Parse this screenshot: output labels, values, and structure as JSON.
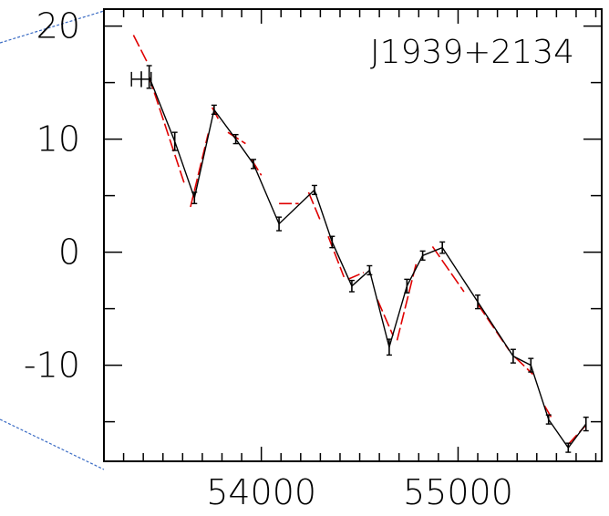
{
  "chart_data": {
    "type": "line",
    "title": "J1939+2134",
    "xlabel": "",
    "ylabel": "",
    "xlim": [
      53200,
      55730
    ],
    "ylim": [
      -18.5,
      21.5
    ],
    "x_ticks": [
      54000,
      55000
    ],
    "y_ticks": [
      20,
      10,
      0,
      -10
    ],
    "y_tick_labels": [
      "20",
      "10",
      "0",
      "-10"
    ],
    "x_tick_labels": [
      "54000",
      "55000"
    ],
    "grid": false,
    "series": [
      {
        "style": "black-line-with-errorbars",
        "color": "#000000",
        "points": [
          {
            "x": 53390,
            "y": 15.3,
            "xerr": 50,
            "yerr": 0.7
          },
          {
            "x": 53430,
            "y": 15.5,
            "xerr": 0,
            "yerr": 1.0
          },
          {
            "x": 53560,
            "y": 9.8,
            "xerr": 0,
            "yerr": 0.8
          },
          {
            "x": 53660,
            "y": 4.8,
            "xerr": 0,
            "yerr": 0.5
          },
          {
            "x": 53760,
            "y": 12.6,
            "xerr": 0,
            "yerr": 0.4
          },
          {
            "x": 53870,
            "y": 10.0,
            "xerr": 0,
            "yerr": 0.4
          },
          {
            "x": 53960,
            "y": 7.8,
            "xerr": 0,
            "yerr": 0.4
          },
          {
            "x": 54090,
            "y": 2.5,
            "xerr": 0,
            "yerr": 0.6
          },
          {
            "x": 54270,
            "y": 5.5,
            "xerr": 0,
            "yerr": 0.4
          },
          {
            "x": 54360,
            "y": 0.9,
            "xerr": 0,
            "yerr": 0.5
          },
          {
            "x": 54460,
            "y": -3.0,
            "xerr": 0,
            "yerr": 0.5
          },
          {
            "x": 54550,
            "y": -1.6,
            "xerr": 0,
            "yerr": 0.4
          },
          {
            "x": 54650,
            "y": -8.4,
            "xerr": 0,
            "yerr": 0.7
          },
          {
            "x": 54740,
            "y": -3.0,
            "xerr": 0,
            "yerr": 0.6
          },
          {
            "x": 54820,
            "y": -0.3,
            "xerr": 0,
            "yerr": 0.4
          },
          {
            "x": 54920,
            "y": 0.4,
            "xerr": 0,
            "yerr": 0.5
          },
          {
            "x": 55100,
            "y": -4.4,
            "xerr": 0,
            "yerr": 0.6
          },
          {
            "x": 55280,
            "y": -9.2,
            "xerr": 0,
            "yerr": 0.6
          },
          {
            "x": 55370,
            "y": -10.0,
            "xerr": 0,
            "yerr": 0.6
          },
          {
            "x": 55460,
            "y": -14.8,
            "xerr": 0,
            "yerr": 0.4
          },
          {
            "x": 55560,
            "y": -17.3,
            "xerr": 0,
            "yerr": 0.4
          },
          {
            "x": 55650,
            "y": -15.2,
            "xerr": 0,
            "yerr": 0.6
          }
        ]
      },
      {
        "style": "red-dashed-segments",
        "color": "#e00000",
        "segments": [
          [
            [
              53350,
              19.2
            ],
            [
              53420,
              16.8
            ]
          ],
          [
            [
              53430,
              15.5
            ],
            [
              53610,
              6.0
            ]
          ],
          [
            [
              53640,
              4.0
            ],
            [
              53730,
              10.5
            ]
          ],
          [
            [
              53750,
              12.8
            ],
            [
              53790,
              11.5
            ]
          ],
          [
            [
              53830,
              10.6
            ],
            [
              53920,
              9.6
            ]
          ],
          [
            [
              53950,
              8.2
            ],
            [
              54000,
              6.8
            ]
          ],
          [
            [
              54090,
              4.3
            ],
            [
              54190,
              4.3
            ]
          ],
          [
            [
              54240,
              5.3
            ],
            [
              54300,
              2.8
            ]
          ],
          [
            [
              54340,
              1.4
            ],
            [
              54420,
              -2.2
            ]
          ],
          [
            [
              54440,
              -2.4
            ],
            [
              54520,
              -1.8
            ]
          ],
          [
            [
              54590,
              -4.2
            ],
            [
              54670,
              -7.4
            ]
          ],
          [
            [
              54690,
              -7.8
            ],
            [
              54790,
              -0.8
            ]
          ],
          [
            [
              54870,
              0.5
            ],
            [
              55030,
              -3.5
            ]
          ],
          [
            [
              55100,
              -4.6
            ],
            [
              55260,
              -8.7
            ]
          ],
          [
            [
              55290,
              -9.3
            ],
            [
              55380,
              -10.8
            ]
          ],
          [
            [
              55440,
              -13.6
            ],
            [
              55480,
              -14.8
            ]
          ],
          [
            [
              55560,
              -17.0
            ],
            [
              55650,
              -15.3
            ]
          ]
        ]
      }
    ]
  }
}
